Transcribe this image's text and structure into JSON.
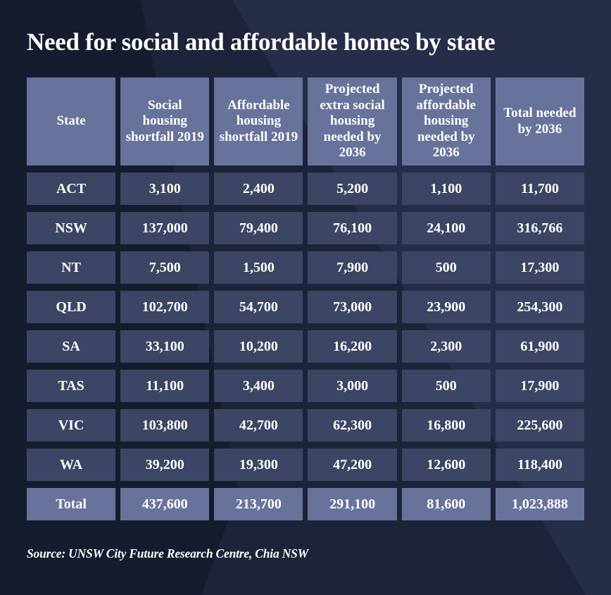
{
  "title": "Need for social and affordable homes by state",
  "source": "Source: UNSW City Future Research Centre, Chia NSW",
  "colors": {
    "background": "#1D2439",
    "background_dark": "#151C2E",
    "background_light": "#262D49",
    "header_cell": "#68739B",
    "data_cell": "#3D4564",
    "total_cell": "#68739B",
    "text": "#FFFFFF"
  },
  "chart_data": {
    "type": "table",
    "title": "Need for social and affordable homes by state",
    "columns": [
      "State",
      "Social housing shortfall 2019",
      "Affordable housing shortfall 2019",
      "Projected extra social housing needed by 2036",
      "Projected affordable housing needed by 2036",
      "Total needed by 2036"
    ],
    "rows": [
      [
        "ACT",
        "3,100",
        "2,400",
        "5,200",
        "1,100",
        "11,700"
      ],
      [
        "NSW",
        "137,000",
        "79,400",
        "76,100",
        "24,100",
        "316,766"
      ],
      [
        "NT",
        "7,500",
        "1,500",
        "7,900",
        "500",
        "17,300"
      ],
      [
        "QLD",
        "102,700",
        "54,700",
        "73,000",
        "23,900",
        "254,300"
      ],
      [
        "SA",
        "33,100",
        "10,200",
        "16,200",
        "2,300",
        "61,900"
      ],
      [
        "TAS",
        "11,100",
        "3,400",
        "3,000",
        "500",
        "17,900"
      ],
      [
        "VIC",
        "103,800",
        "42,700",
        "62,300",
        "16,800",
        "225,600"
      ],
      [
        "WA",
        "39,200",
        "19,300",
        "47,200",
        "12,600",
        "118,400"
      ]
    ],
    "total_row": [
      "Total",
      "437,600",
      "213,700",
      "291,100",
      "81,600",
      "1,023,888"
    ],
    "source": "Source: UNSW City Future Research Centre, Chia NSW"
  }
}
